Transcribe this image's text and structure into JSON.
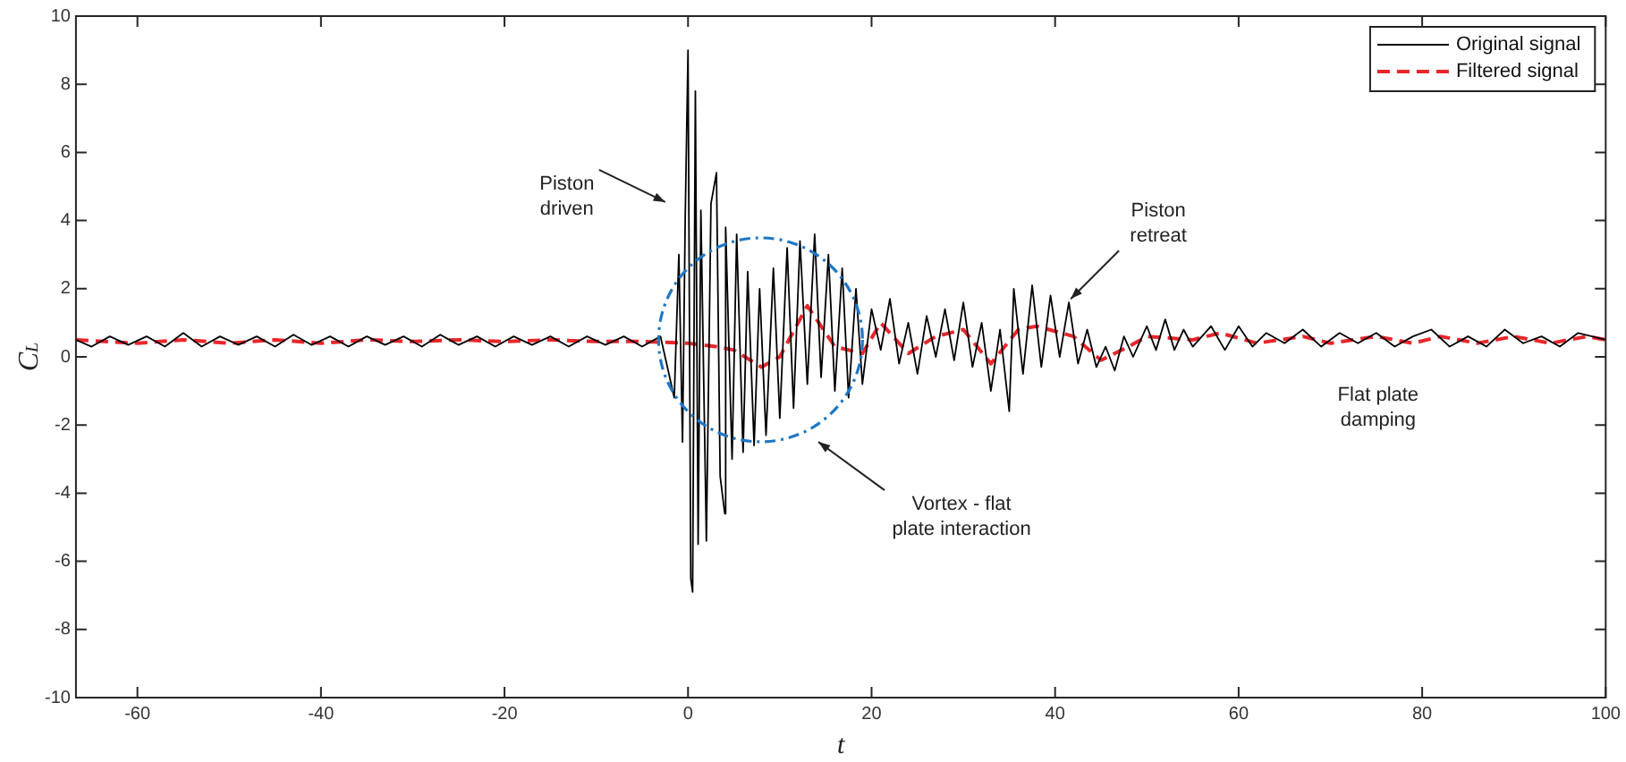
{
  "chart_data": {
    "type": "line",
    "xlabel": "t",
    "ylabel": "C$_{L}$",
    "xlim": [
      -66.7,
      100
    ],
    "xticks": [
      -60,
      -40,
      -20,
      0,
      20,
      40,
      60,
      80,
      100
    ],
    "ylim": [
      -10,
      10
    ],
    "yticks": [
      -10,
      -8,
      -6,
      -4,
      -2,
      0,
      2,
      4,
      6,
      8,
      10
    ],
    "grid": false,
    "legend": "top right",
    "marker": "none",
    "series": [
      {
        "name": "Original signal",
        "color": "#000000",
        "line_style": "solid",
        "x": [
          -66.7,
          -65,
          -63,
          -61,
          -59,
          -57,
          -55,
          -53,
          -51,
          -49,
          -47,
          -45,
          -43,
          -41,
          -39,
          -37,
          -35,
          -33,
          -31,
          -29,
          -27,
          -25,
          -23,
          -21,
          -19,
          -17,
          -15,
          -13,
          -11,
          -9,
          -7,
          -5,
          -3,
          -1.5,
          -1,
          -0.6,
          -0.3,
          0,
          0.3,
          0.5,
          0.8,
          1.1,
          1.4,
          2,
          2.5,
          3.1,
          3.5,
          4,
          4.1,
          4.8,
          5.3,
          6,
          6.5,
          7.2,
          7.8,
          8.5,
          9.3,
          10,
          10.8,
          11.5,
          12.2,
          13,
          13.8,
          14.5,
          15.3,
          16,
          16.8,
          17.5,
          18.3,
          19,
          20,
          21,
          22,
          23,
          24,
          25,
          26,
          27,
          28,
          29,
          30,
          31,
          32,
          33,
          34,
          35,
          35.5,
          36.5,
          37.5,
          38.5,
          39.5,
          40.5,
          41.5,
          42.5,
          43.5,
          44.5,
          45.5,
          46.5,
          47.5,
          48.5,
          50,
          51,
          52,
          53,
          54,
          55,
          57,
          58.5,
          60,
          61.5,
          63,
          65,
          67,
          69,
          71,
          73,
          75,
          77,
          79,
          81,
          83,
          85,
          87,
          89,
          91,
          93,
          95,
          97,
          100
        ],
        "values": [
          0.5,
          0.3,
          0.6,
          0.35,
          0.6,
          0.3,
          0.7,
          0.3,
          0.6,
          0.35,
          0.6,
          0.3,
          0.65,
          0.35,
          0.6,
          0.3,
          0.6,
          0.35,
          0.6,
          0.3,
          0.65,
          0.35,
          0.6,
          0.3,
          0.6,
          0.35,
          0.6,
          0.3,
          0.6,
          0.35,
          0.6,
          0.3,
          0.6,
          -1.2,
          3,
          -2.5,
          4.2,
          9,
          -6.5,
          -6.9,
          7.8,
          -5.5,
          4.3,
          -5.4,
          4.5,
          5.4,
          -3.5,
          -4.6,
          3.8,
          -3,
          3.6,
          -2.8,
          2.5,
          -2.6,
          2,
          -2.3,
          2.6,
          -1.8,
          3.2,
          -1.5,
          3.4,
          -0.8,
          3.6,
          -0.6,
          3,
          -1,
          2.6,
          -1.2,
          2,
          -0.8,
          1.4,
          0.2,
          1.7,
          -0.2,
          1,
          -0.5,
          1.2,
          0,
          1.4,
          -0.1,
          1.6,
          -0.3,
          1,
          -1,
          0.8,
          -1.6,
          2,
          -0.5,
          2.1,
          -0.3,
          1.8,
          0,
          1.6,
          -0.2,
          0.8,
          -0.3,
          0.3,
          -0.4,
          0.6,
          0,
          0.9,
          0.2,
          1.1,
          0.2,
          0.8,
          0.3,
          0.9,
          0.2,
          0.9,
          0.3,
          0.7,
          0.4,
          0.8,
          0.3,
          0.7,
          0.4,
          0.7,
          0.3,
          0.6,
          0.8,
          0.3,
          0.6,
          0.3,
          0.8,
          0.4,
          0.6,
          0.3,
          0.7,
          0.5
        ]
      },
      {
        "name": "Filtered signal",
        "color": "#e8262a",
        "line_style": "dashed",
        "x": [
          -66.7,
          -60,
          -55,
          -50,
          -45,
          -40,
          -35,
          -30,
          -25,
          -20,
          -15,
          -10,
          -5,
          0,
          3,
          5,
          8,
          10,
          13,
          16,
          19,
          21,
          24,
          27,
          30,
          33,
          36,
          38,
          42,
          45,
          48,
          50,
          55,
          58,
          62,
          67,
          70,
          75,
          79,
          82,
          86,
          90,
          94,
          98,
          100
        ],
        "values": [
          0.5,
          0.4,
          0.5,
          0.4,
          0.5,
          0.4,
          0.5,
          0.45,
          0.5,
          0.45,
          0.5,
          0.45,
          0.45,
          0.4,
          0.3,
          0.2,
          -0.3,
          0,
          1.5,
          0.3,
          0.1,
          1,
          0.1,
          0.6,
          0.8,
          -0.2,
          0.8,
          0.9,
          0.6,
          -0.1,
          0.3,
          0.6,
          0.5,
          0.7,
          0.4,
          0.6,
          0.4,
          0.6,
          0.4,
          0.6,
          0.4,
          0.6,
          0.4,
          0.6,
          0.5
        ]
      }
    ],
    "annotations": [
      "Piston driven",
      "Vortex - flat plate interaction",
      {
        "text": "Piston retreat",
        "x": 41.7,
        "y": 1.7
      },
      "Flat plate damping"
    ]
  }
}
